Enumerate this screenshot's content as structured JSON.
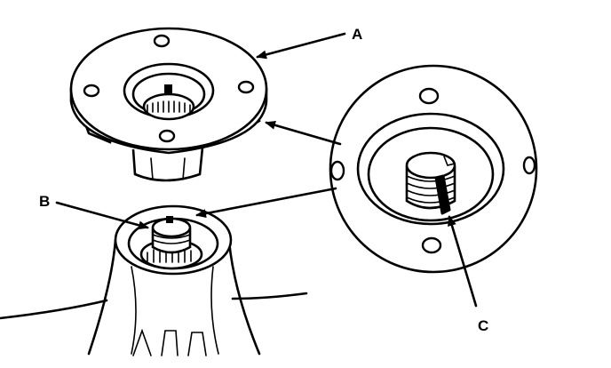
{
  "labels": {
    "a": "A",
    "b": "B",
    "c": "C"
  },
  "colors": {
    "ink": "#000000",
    "paper": "#ffffff"
  }
}
